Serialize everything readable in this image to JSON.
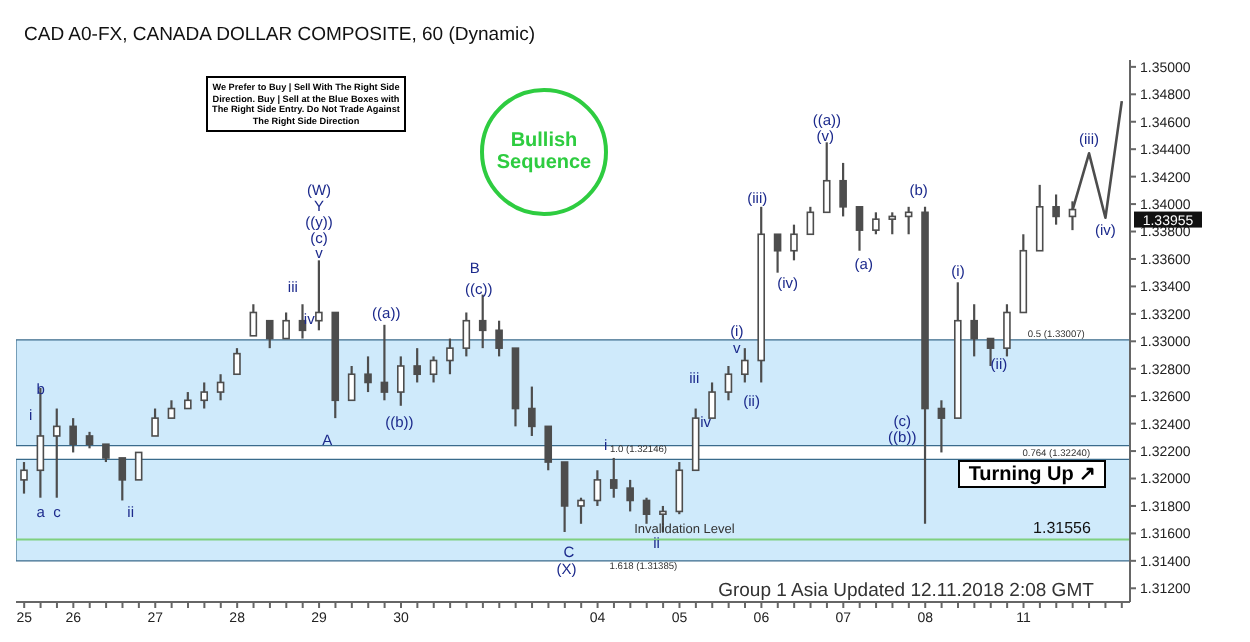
{
  "chart_data": {
    "type": "candlestick",
    "title": "CAD A0-FX, CANADA DOLLAR COMPOSITE, 60 (Dynamic)",
    "categories": [
      "25",
      null,
      null,
      "26",
      null,
      null,
      null,
      null,
      "27",
      null,
      null,
      null,
      null,
      "28",
      null,
      null,
      null,
      null,
      "29",
      null,
      null,
      null,
      null,
      "30",
      null,
      null,
      null,
      null,
      null,
      null,
      null,
      null,
      null,
      null,
      null,
      "04",
      null,
      null,
      null,
      null,
      "05",
      null,
      null,
      null,
      null,
      "06",
      null,
      null,
      null,
      null,
      "07",
      null,
      null,
      null,
      null,
      "08",
      null,
      null,
      null,
      null,
      null,
      "11",
      null,
      null,
      null,
      null,
      null,
      null
    ],
    "ylim": [
      1.311,
      1.3505
    ],
    "yticks": [
      {
        "value": 1.312,
        "label": "1.31200"
      },
      {
        "value": 1.314,
        "label": "1.31400"
      },
      {
        "value": 1.316,
        "label": "1.31600"
      },
      {
        "value": 1.318,
        "label": "1.31800"
      },
      {
        "value": 1.32,
        "label": "1.32000"
      },
      {
        "value": 1.322,
        "label": "1.32200"
      },
      {
        "value": 1.324,
        "label": "1.32400"
      },
      {
        "value": 1.326,
        "label": "1.32600"
      },
      {
        "value": 1.328,
        "label": "1.32800"
      },
      {
        "value": 1.33,
        "label": "1.33000"
      },
      {
        "value": 1.332,
        "label": "1.33200"
      },
      {
        "value": 1.334,
        "label": "1.33400"
      },
      {
        "value": 1.336,
        "label": "1.33600"
      },
      {
        "value": 1.338,
        "label": "1.33800"
      },
      {
        "value": 1.34,
        "label": "1.34000"
      },
      {
        "value": 1.342,
        "label": "1.34200"
      },
      {
        "value": 1.344,
        "label": "1.34400"
      },
      {
        "value": 1.346,
        "label": "1.34600"
      },
      {
        "value": 1.348,
        "label": "1.34800"
      },
      {
        "value": 1.35,
        "label": "1.35000"
      }
    ],
    "series": [
      {
        "color": "#4d4d4d",
        "ohlc": [
          [
            1.3199,
            1.3212,
            1.3189,
            1.3206
          ],
          [
            1.3206,
            1.3266,
            1.3186,
            1.3231
          ],
          [
            1.3231,
            1.3251,
            1.3186,
            1.3238
          ],
          [
            1.3238,
            1.3244,
            1.3219,
            1.3225
          ],
          [
            1.3231,
            1.3234,
            1.3222,
            1.3225
          ],
          [
            1.3225,
            1.3225,
            1.3212,
            1.3215
          ],
          [
            1.3215,
            1.3215,
            1.3184,
            1.3199
          ],
          [
            1.3199,
            1.3219,
            1.3199,
            1.3219
          ],
          [
            1.3231,
            1.3251,
            1.3231,
            1.3244
          ],
          [
            1.3244,
            1.3257,
            1.3244,
            1.3251
          ],
          [
            1.3251,
            1.3263,
            1.3251,
            1.3257
          ],
          [
            1.3257,
            1.327,
            1.3251,
            1.3263
          ],
          [
            1.3263,
            1.3276,
            1.3257,
            1.327
          ],
          [
            1.3276,
            1.3295,
            1.3276,
            1.3291
          ],
          [
            1.3304,
            1.3327,
            1.3304,
            1.3321
          ],
          [
            1.3315,
            1.3315,
            1.3295,
            1.3302
          ],
          [
            1.3302,
            1.3321,
            1.3302,
            1.3315
          ],
          [
            1.3315,
            1.3327,
            1.3302,
            1.3308
          ],
          [
            1.3315,
            1.3359,
            1.3308,
            1.3321
          ],
          [
            1.3321,
            1.3321,
            1.3244,
            1.3257
          ],
          [
            1.3257,
            1.3282,
            1.3257,
            1.3276
          ],
          [
            1.3276,
            1.3289,
            1.3263,
            1.327
          ],
          [
            1.327,
            1.3312,
            1.3257,
            1.3263
          ],
          [
            1.3263,
            1.3289,
            1.3253,
            1.3282
          ],
          [
            1.3282,
            1.3295,
            1.327,
            1.3276
          ],
          [
            1.3276,
            1.3289,
            1.327,
            1.3286
          ],
          [
            1.3286,
            1.3302,
            1.3276,
            1.3295
          ],
          [
            1.3295,
            1.3321,
            1.3289,
            1.3315
          ],
          [
            1.3315,
            1.3334,
            1.3295,
            1.3308
          ],
          [
            1.3308,
            1.3315,
            1.3289,
            1.3295
          ],
          [
            1.3295,
            1.3295,
            1.3238,
            1.3251
          ],
          [
            1.3251,
            1.3267,
            1.3231,
            1.3238
          ],
          [
            1.3238,
            1.3238,
            1.3206,
            1.3212
          ],
          [
            1.3212,
            1.3212,
            1.3161,
            1.318
          ],
          [
            1.318,
            1.3186,
            1.3167,
            1.3184
          ],
          [
            1.3184,
            1.3206,
            1.318,
            1.3199
          ],
          [
            1.3199,
            1.3215,
            1.3186,
            1.3193
          ],
          [
            1.3193,
            1.3199,
            1.3176,
            1.3184
          ],
          [
            1.3184,
            1.3186,
            1.3167,
            1.3174
          ],
          [
            1.3174,
            1.318,
            1.3161,
            1.3176
          ],
          [
            1.3176,
            1.3212,
            1.3174,
            1.3206
          ],
          [
            1.3206,
            1.3251,
            1.3206,
            1.3244
          ],
          [
            1.3244,
            1.327,
            1.3244,
            1.3263
          ],
          [
            1.3263,
            1.3282,
            1.3257,
            1.3276
          ],
          [
            1.3276,
            1.3295,
            1.327,
            1.3286
          ],
          [
            1.3286,
            1.3398,
            1.327,
            1.3378
          ],
          [
            1.3378,
            1.3378,
            1.335,
            1.3366
          ],
          [
            1.3366,
            1.3385,
            1.3359,
            1.3378
          ],
          [
            1.3378,
            1.3398,
            1.3378,
            1.3394
          ],
          [
            1.3394,
            1.3445,
            1.3394,
            1.3417
          ],
          [
            1.3417,
            1.343,
            1.3391,
            1.3398
          ],
          [
            1.3398,
            1.3398,
            1.3366,
            1.3381
          ],
          [
            1.3381,
            1.3394,
            1.3378,
            1.3389
          ],
          [
            1.3389,
            1.3394,
            1.3378,
            1.3391
          ],
          [
            1.3391,
            1.3398,
            1.3378,
            1.3394
          ],
          [
            1.3394,
            1.3398,
            1.3167,
            1.3251
          ],
          [
            1.3251,
            1.3257,
            1.3219,
            1.3244
          ],
          [
            1.3244,
            1.3343,
            1.3244,
            1.3315
          ],
          [
            1.3315,
            1.3327,
            1.3289,
            1.3302
          ],
          [
            1.3302,
            1.3302,
            1.3282,
            1.3295
          ],
          [
            1.3295,
            1.3327,
            1.3289,
            1.3321
          ],
          [
            1.3321,
            1.3378,
            1.3321,
            1.3366
          ],
          [
            1.3366,
            1.3414,
            1.3366,
            1.3398
          ],
          [
            1.3398,
            1.3407,
            1.3385,
            1.3391
          ],
          [
            1.3391,
            1.3402,
            1.3381,
            1.3396
          ],
          null,
          null,
          null
        ]
      },
      {
        "type": "line",
        "color": "#4d4d4d",
        "values": [
          null,
          null,
          null,
          null,
          null,
          null,
          null,
          null,
          null,
          null,
          null,
          null,
          null,
          null,
          null,
          null,
          null,
          null,
          null,
          null,
          null,
          null,
          null,
          null,
          null,
          null,
          null,
          null,
          null,
          null,
          null,
          null,
          null,
          null,
          null,
          null,
          null,
          null,
          null,
          null,
          null,
          null,
          null,
          null,
          null,
          null,
          null,
          null,
          null,
          null,
          null,
          null,
          null,
          null,
          null,
          null,
          null,
          null,
          null,
          null,
          null,
          null,
          null,
          null,
          1.3396,
          1.3437,
          1.339,
          1.3475
        ]
      }
    ],
    "bands": [
      {
        "axis": "y",
        "from": 1.314,
        "to": 1.3214,
        "color": "#a8d8f8"
      },
      {
        "axis": "y",
        "from": 1.3224,
        "to": 1.3301,
        "color": "#a8d8f8"
      }
    ],
    "ref_lines": [
      {
        "axis": "y",
        "value": 1.31556,
        "label": "Invalidation Level",
        "color": "#7fd07f"
      }
    ],
    "annotations": [
      "We Prefer to Buy | Sell With The Right Side Direction. Buy | Sell at the Blue Boxes with The Right Side Entry. Do Not Trade Against The Right Side Direction",
      "Bullish Sequence",
      "Turning Up ↗",
      "Group 1 Asia Updated 12.11.2018 2:08 GMT",
      "1.33955",
      "1.31556",
      "i",
      "b",
      "a",
      "c",
      "ii",
      "iii",
      "iv",
      "(W)",
      "Y",
      "((y))",
      "(c)",
      "v",
      "A",
      "((a))",
      "((b))",
      "B",
      "((c))",
      "C",
      "(X)",
      "1.0 (1.32146)",
      "1.618 (1.31385)",
      "i",
      "ii",
      "iii",
      "iv",
      "v",
      "(i)",
      "(ii)",
      "(iii)",
      "(iv)",
      "(v)",
      "((a))",
      "(a)",
      "(b)",
      "(c)",
      "((b))",
      "(i)",
      "(ii)",
      "(iii)",
      "(iv)",
      "0.5 (1.33007)",
      "0.764 (1.32240)"
    ]
  }
}
